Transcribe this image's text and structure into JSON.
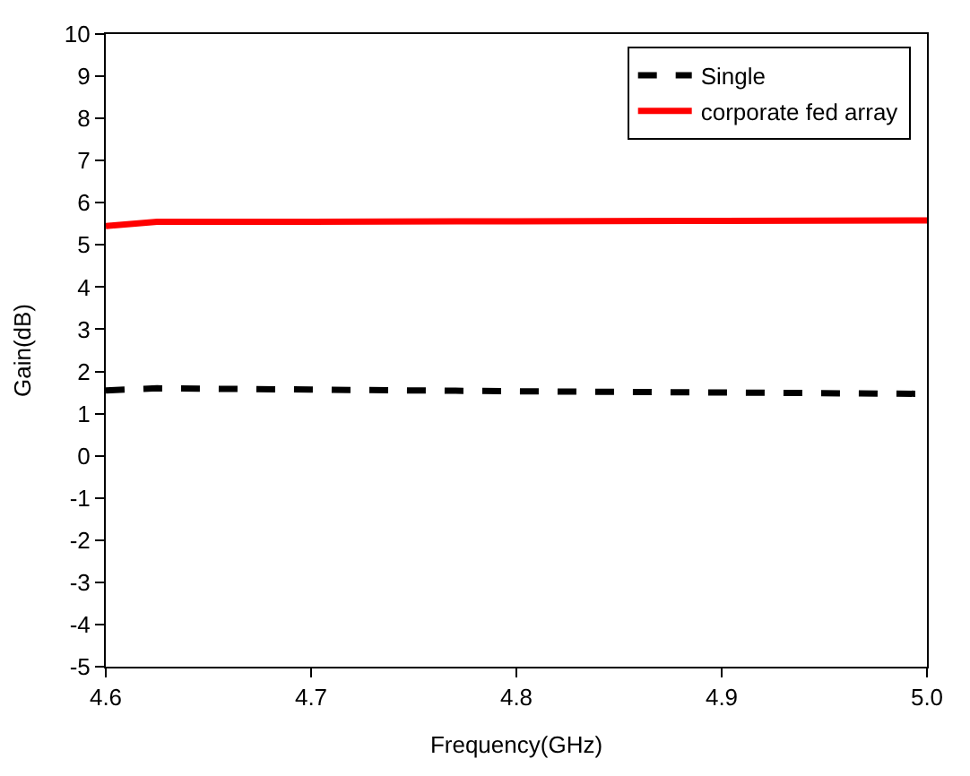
{
  "chart_data": {
    "type": "line",
    "xlabel": "Frequency(GHz)",
    "ylabel": "Gain(dB)",
    "x": [
      4.6,
      4.625,
      4.7,
      4.8,
      4.9,
      5.0
    ],
    "series": [
      {
        "name": "Single",
        "color": "#000000",
        "line_style": "dashed",
        "values": [
          1.55,
          1.6,
          1.57,
          1.53,
          1.5,
          1.47
        ]
      },
      {
        "name": "corporate fed array",
        "color": "#ff0000",
        "line_style": "solid",
        "values": [
          5.45,
          5.55,
          5.55,
          5.56,
          5.57,
          5.58
        ]
      }
    ],
    "xlim": [
      4.6,
      5.0
    ],
    "xticks": [
      4.6,
      4.7,
      4.8,
      4.9,
      {
        "value": 5.0,
        "label": "5.0"
      }
    ],
    "ylim": [
      -5,
      10
    ],
    "yticks": [
      -5,
      -4,
      -3,
      -2,
      -1,
      0,
      1,
      2,
      3,
      4,
      5,
      6,
      7,
      8,
      9,
      10
    ],
    "legend": "top right",
    "marker": "none"
  }
}
